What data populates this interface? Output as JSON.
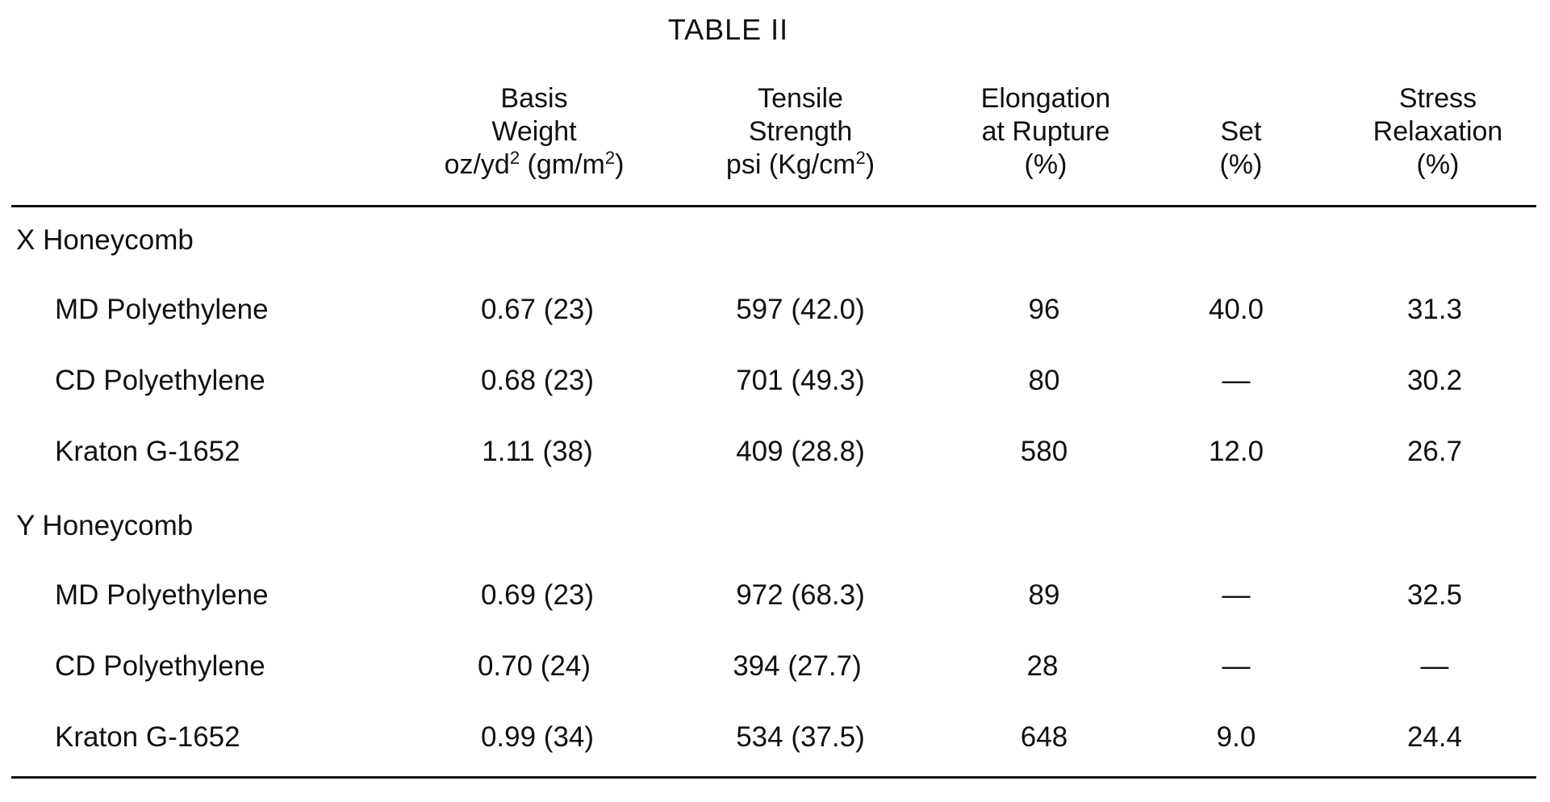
{
  "table": {
    "title": "TABLE II",
    "headers": [
      {
        "key": "basis_weight",
        "lines": [
          "Basis",
          "Weight",
          "oz/yd",
          "2",
          " (gm/m",
          "2",
          ")"
        ]
      },
      {
        "key": "tensile_strength",
        "lines": [
          "Tensile",
          "Strength",
          "psi (Kg/cm",
          "2",
          ")"
        ]
      },
      {
        "key": "elongation",
        "lines": [
          "Elongation",
          "at Rupture",
          "(%)"
        ]
      },
      {
        "key": "set",
        "lines": [
          "Set",
          "(%)"
        ]
      },
      {
        "key": "stress_relaxation",
        "lines": [
          "Stress",
          "Relaxation",
          "(%)"
        ]
      }
    ],
    "header_text": {
      "basis_l1": "Basis",
      "basis_l2": "Weight",
      "basis_l3a": "oz/yd",
      "basis_sup1": "2",
      "basis_l3b": " (gm/m",
      "basis_sup2": "2",
      "basis_l3c": ")",
      "tensile_l1": "Tensile",
      "tensile_l2": "Strength",
      "tensile_l3a": "psi (Kg/cm",
      "tensile_sup": "2",
      "tensile_l3b": ")",
      "elong_l1": "Elongation",
      "elong_l2": "at Rupture",
      "elong_l3": "(%)",
      "set_l1": "Set",
      "set_l2": "(%)",
      "stress_l1": "Stress",
      "stress_l2": "Relaxation",
      "stress_l3": "(%)"
    },
    "groups": [
      {
        "label": "X Honeycomb",
        "rows": [
          {
            "name": "MD Polyethylene",
            "basis_weight": "0.67 (23)",
            "tensile_strength": "597 (42.0)",
            "elongation": "96",
            "set": "40.0",
            "stress_relaxation": "31.3"
          },
          {
            "name": "CD Polyethylene",
            "basis_weight": "0.68 (23)",
            "tensile_strength": "701 (49.3)",
            "elongation": "80",
            "set": "—",
            "stress_relaxation": "30.2"
          },
          {
            "name": "Kraton G-1652",
            "basis_weight": "1.11 (38)",
            "tensile_strength": "409 (28.8)",
            "elongation": "580",
            "set": "12.0",
            "stress_relaxation": "26.7"
          }
        ]
      },
      {
        "label": "Y  Honeycomb",
        "rows": [
          {
            "name": "MD Polyethylene",
            "basis_weight": "0.69 (23)",
            "tensile_strength": "972 (68.3)",
            "elongation": "89",
            "set": "—",
            "stress_relaxation": "32.5"
          },
          {
            "name": "CD Polyethylene",
            "basis_weight": "0.70 (24)",
            "tensile_strength": "394 (27.7)",
            "elongation": "28",
            "set": "—",
            "stress_relaxation": "—"
          },
          {
            "name": "Kraton G-1652",
            "basis_weight": "0.99 (34)",
            "tensile_strength": "534 (37.5)",
            "elongation": "648",
            "set": "9.0",
            "stress_relaxation": "24.4"
          }
        ]
      }
    ]
  }
}
